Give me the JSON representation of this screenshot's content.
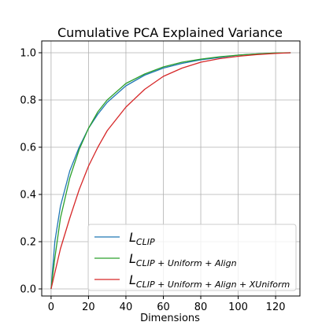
{
  "chart_data": {
    "type": "line",
    "title": "Cumulative PCA Explained Variance",
    "xlabel": "Dimensions",
    "ylabel": "",
    "xlim": [
      -5,
      133
    ],
    "ylim": [
      -0.03,
      1.05
    ],
    "xticks": [
      0,
      20,
      40,
      60,
      80,
      100,
      120
    ],
    "yticks": [
      0.0,
      0.2,
      0.4,
      0.6,
      0.8,
      1.0
    ],
    "grid": true,
    "legend_position": "lower-right",
    "series": [
      {
        "name": "L_{CLIP}",
        "legend_base": "L",
        "legend_sub": "CLIP",
        "color": "#1f77b4",
        "x": [
          0,
          2,
          5,
          10,
          15,
          20,
          25,
          30,
          40,
          50,
          60,
          70,
          80,
          90,
          100,
          110,
          120,
          128
        ],
        "y": [
          0.0,
          0.2,
          0.35,
          0.5,
          0.6,
          0.68,
          0.74,
          0.79,
          0.86,
          0.905,
          0.935,
          0.955,
          0.97,
          0.98,
          0.99,
          0.995,
          0.999,
          1.0
        ]
      },
      {
        "name": "L_{CLIP + Uniform + Align}",
        "legend_base": "L",
        "legend_sub": "CLIP + Uniform + Align",
        "color": "#2ca02c",
        "x": [
          0,
          2,
          5,
          10,
          15,
          20,
          25,
          30,
          40,
          50,
          60,
          70,
          80,
          90,
          100,
          110,
          120,
          128
        ],
        "y": [
          0.0,
          0.13,
          0.3,
          0.47,
          0.59,
          0.68,
          0.75,
          0.8,
          0.87,
          0.91,
          0.94,
          0.96,
          0.973,
          0.983,
          0.99,
          0.995,
          0.999,
          1.0
        ]
      },
      {
        "name": "L_{CLIP + Uniform + Align + XUniform}",
        "legend_base": "L",
        "legend_sub": "CLIP + Uniform + Align + XUniform",
        "color": "#d62728",
        "x": [
          0,
          5,
          10,
          15,
          20,
          25,
          30,
          40,
          50,
          60,
          70,
          80,
          90,
          100,
          110,
          120,
          128
        ],
        "y": [
          0.0,
          0.17,
          0.3,
          0.42,
          0.52,
          0.6,
          0.67,
          0.77,
          0.845,
          0.9,
          0.935,
          0.96,
          0.975,
          0.985,
          0.992,
          0.997,
          1.0
        ]
      }
    ]
  }
}
